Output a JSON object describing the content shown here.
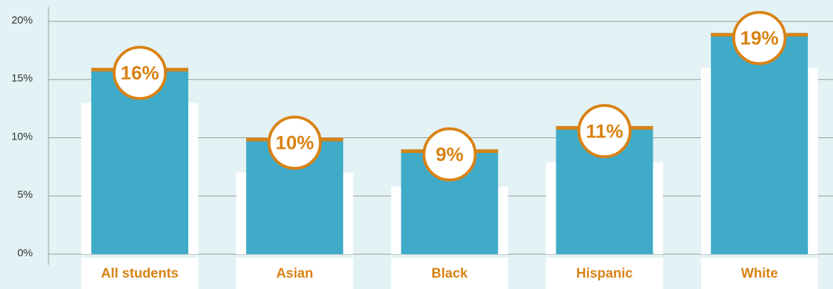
{
  "chart_data": {
    "type": "bar",
    "categories": [
      "All students",
      "Asian",
      "Black",
      "Hispanic",
      "White"
    ],
    "series": [
      {
        "color": "#ffffff",
        "values": [
          13,
          7,
          5.8,
          7.9,
          16
        ]
      },
      {
        "color": "#3fabc8",
        "values": [
          16,
          10,
          9,
          11,
          19
        ],
        "value_labels": [
          "16%",
          "10%",
          "9%",
          "11%",
          "19%"
        ]
      }
    ],
    "accent_color": "#d98214",
    "ylim": [
      0,
      20
    ],
    "yticks": [
      {
        "value": 0,
        "label": "0%"
      },
      {
        "value": 5,
        "label": "5%"
      },
      {
        "value": 10,
        "label": "10%"
      },
      {
        "value": 15,
        "label": "15%"
      },
      {
        "value": 20,
        "label": "20%"
      }
    ],
    "grid": true
  }
}
